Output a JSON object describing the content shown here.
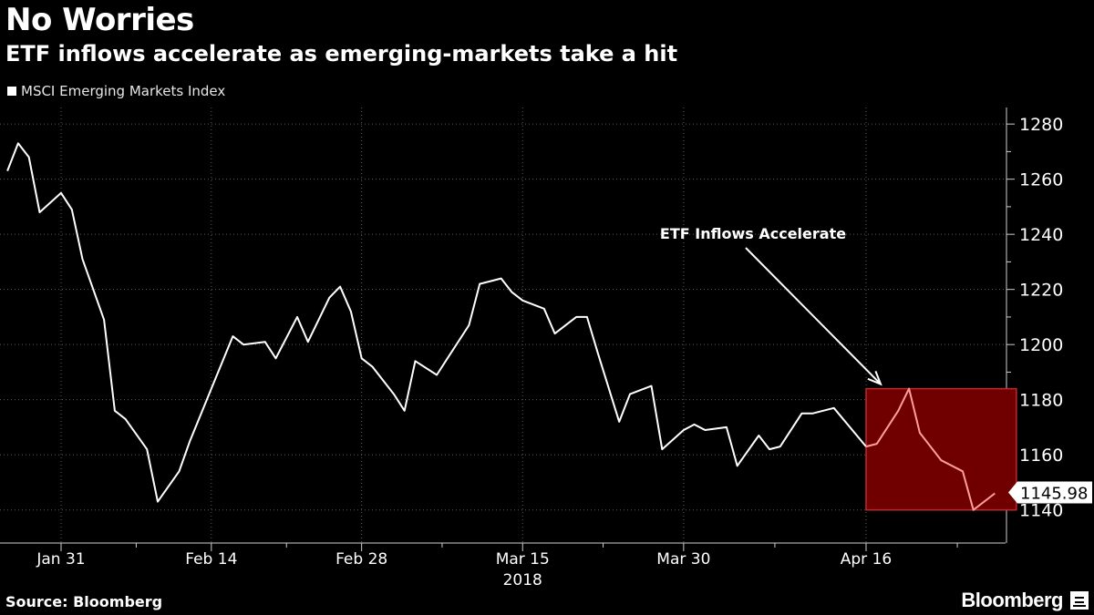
{
  "header": {
    "title": "No Worries",
    "subtitle": "ETF inflows accelerate as emerging-markets take a hit"
  },
  "footer": {
    "source": "Source: Bloomberg",
    "brand": "Bloomberg"
  },
  "colors": {
    "background": "#000000",
    "line": "#ffffff",
    "highlight_fill": "#700000",
    "highlight_border": "#c0282d",
    "highlight_line": "#ff9e9e"
  },
  "chart_data": {
    "type": "line",
    "legend": [
      "MSCI Emerging Markets Index"
    ],
    "legend_position": "top-left",
    "x_tick_labels": [
      "Jan 31",
      "Feb 14",
      "Feb 28",
      "Mar 15",
      "Mar 30",
      "Apr 16"
    ],
    "x_year_label": "2018",
    "y_ticks": [
      1140,
      1160,
      1180,
      1200,
      1220,
      1240,
      1260,
      1280
    ],
    "ylim": [
      1128,
      1286
    ],
    "y_axis_side": "right",
    "grid": "dotted",
    "last_value_label": "1145.98",
    "annotation": {
      "text": "ETF Inflows Accelerate",
      "target_date": "2018-04-16",
      "target_value": 1185
    },
    "highlight_region": {
      "x_start": "2018-04-16",
      "x_end": "2018-04-30",
      "y_low": 1140,
      "y_high": 1184
    },
    "series": [
      {
        "name": "MSCI Emerging Markets Index",
        "points": [
          [
            "2018-01-26",
            1263
          ],
          [
            "2018-01-27",
            1273
          ],
          [
            "2018-01-28",
            1268
          ],
          [
            "2018-01-29",
            1248
          ],
          [
            "2018-01-31",
            1255
          ],
          [
            "2018-02-01",
            1249
          ],
          [
            "2018-02-02",
            1231
          ],
          [
            "2018-02-04",
            1209
          ],
          [
            "2018-02-05",
            1176
          ],
          [
            "2018-02-06",
            1173
          ],
          [
            "2018-02-08",
            1162
          ],
          [
            "2018-02-09",
            1143
          ],
          [
            "2018-02-11",
            1154
          ],
          [
            "2018-02-12",
            1165
          ],
          [
            "2018-02-14",
            1184
          ],
          [
            "2018-02-16",
            1203
          ],
          [
            "2018-02-17",
            1200
          ],
          [
            "2018-02-19",
            1201
          ],
          [
            "2018-02-20",
            1195
          ],
          [
            "2018-02-22",
            1210
          ],
          [
            "2018-02-23",
            1201
          ],
          [
            "2018-02-25",
            1217
          ],
          [
            "2018-02-26",
            1221
          ],
          [
            "2018-02-27",
            1212
          ],
          [
            "2018-02-28",
            1195
          ],
          [
            "2018-03-01",
            1192
          ],
          [
            "2018-03-03",
            1182
          ],
          [
            "2018-03-04",
            1176
          ],
          [
            "2018-03-05",
            1194
          ],
          [
            "2018-03-07",
            1189
          ],
          [
            "2018-03-08",
            1195
          ],
          [
            "2018-03-10",
            1207
          ],
          [
            "2018-03-11",
            1222
          ],
          [
            "2018-03-13",
            1224
          ],
          [
            "2018-03-14",
            1219
          ],
          [
            "2018-03-15",
            1216
          ],
          [
            "2018-03-17",
            1213
          ],
          [
            "2018-03-18",
            1204
          ],
          [
            "2018-03-20",
            1210
          ],
          [
            "2018-03-21",
            1210
          ],
          [
            "2018-03-22",
            1197
          ],
          [
            "2018-03-24",
            1172
          ],
          [
            "2018-03-25",
            1182
          ],
          [
            "2018-03-27",
            1185
          ],
          [
            "2018-03-28",
            1162
          ],
          [
            "2018-03-30",
            1169
          ],
          [
            "2018-03-31",
            1171
          ],
          [
            "2018-04-01",
            1169
          ],
          [
            "2018-04-03",
            1170
          ],
          [
            "2018-04-04",
            1156
          ],
          [
            "2018-04-06",
            1167
          ],
          [
            "2018-04-07",
            1162
          ],
          [
            "2018-04-08",
            1163
          ],
          [
            "2018-04-10",
            1175
          ],
          [
            "2018-04-11",
            1175
          ],
          [
            "2018-04-13",
            1177
          ],
          [
            "2018-04-16",
            1163
          ],
          [
            "2018-04-17",
            1164
          ],
          [
            "2018-04-19",
            1176
          ],
          [
            "2018-04-20",
            1184
          ],
          [
            "2018-04-21",
            1168
          ],
          [
            "2018-04-23",
            1158
          ],
          [
            "2018-04-25",
            1154
          ],
          [
            "2018-04-26",
            1140
          ],
          [
            "2018-04-28",
            1146
          ]
        ]
      }
    ]
  }
}
